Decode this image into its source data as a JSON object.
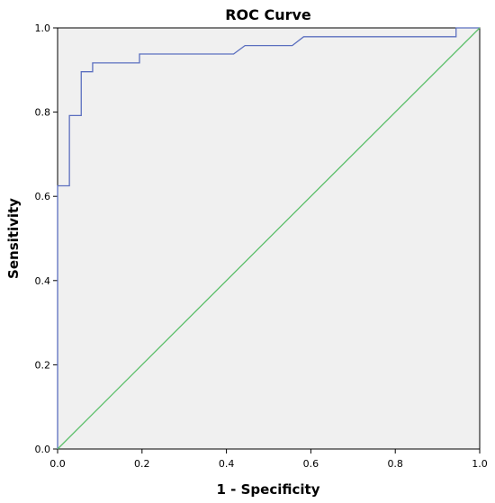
{
  "chart_data": {
    "type": "line",
    "title": "ROC Curve",
    "xlabel": "1 - Specificity",
    "ylabel": "Sensitivity",
    "xlim": [
      0,
      1
    ],
    "ylim": [
      0,
      1
    ],
    "x_ticks": [
      "0.0",
      "0.2",
      "0.4",
      "0.6",
      "0.8",
      "1.0"
    ],
    "y_ticks": [
      "0.0",
      "0.2",
      "0.4",
      "0.6",
      "0.8",
      "1.0"
    ],
    "grid": false,
    "background_color": "#f0f0f0",
    "series": [
      {
        "color": "#5b6fbf",
        "step": true,
        "x": [
          0.0,
          0.0,
          0.028,
          0.028,
          0.056,
          0.056,
          0.083,
          0.083,
          0.194,
          0.194,
          0.417,
          0.444,
          0.556,
          0.583,
          0.944,
          0.944,
          1.0
        ],
        "y": [
          0.0,
          0.625,
          0.625,
          0.792,
          0.792,
          0.896,
          0.896,
          0.917,
          0.917,
          0.938,
          0.938,
          0.958,
          0.958,
          0.979,
          0.979,
          1.0,
          1.0
        ]
      },
      {
        "color": "#5cbf6a",
        "step": false,
        "x": [
          0,
          1
        ],
        "y": [
          0,
          1
        ]
      }
    ]
  }
}
